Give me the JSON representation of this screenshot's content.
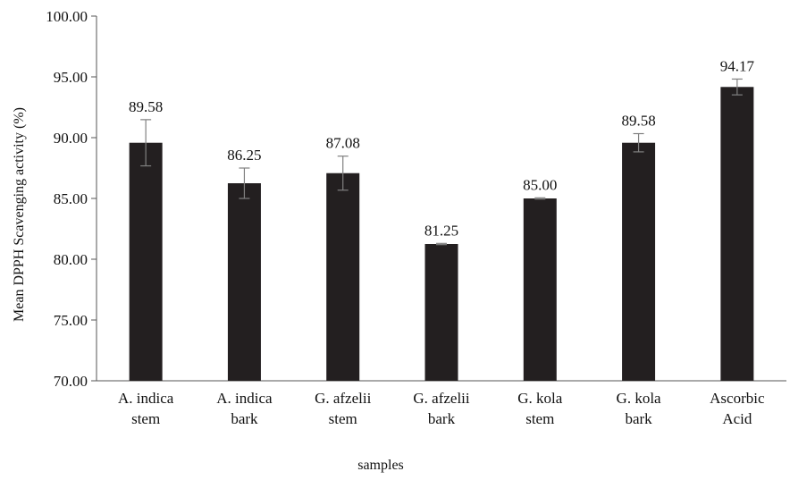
{
  "chart_data": {
    "type": "bar",
    "categories": [
      [
        "A. indica",
        "stem"
      ],
      [
        "A. indica",
        "bark"
      ],
      [
        "G. afzelii",
        "stem"
      ],
      [
        "G. afzelii",
        "bark"
      ],
      [
        "G. kola",
        "stem"
      ],
      [
        "G. kola",
        "bark"
      ],
      [
        "Ascorbic",
        "Acid"
      ]
    ],
    "values": [
      89.58,
      86.25,
      87.08,
      81.25,
      85.0,
      89.58,
      94.17
    ],
    "value_labels": [
      "89.58",
      "86.25",
      "87.08",
      "81.25",
      "85.00",
      "89.58",
      "94.17"
    ],
    "error": [
      1.9,
      1.25,
      1.4,
      0.05,
      0.05,
      0.75,
      0.65
    ],
    "ylim": [
      70,
      100
    ],
    "yticks": [
      "70.00",
      "75.00",
      "80.00",
      "85.00",
      "90.00",
      "95.00",
      "100.00"
    ],
    "ylabel": "Mean DPPH Scavenging activity (%)",
    "xlabel": "samples",
    "bar_color": "#231f20",
    "grid": false,
    "legend": "none"
  }
}
